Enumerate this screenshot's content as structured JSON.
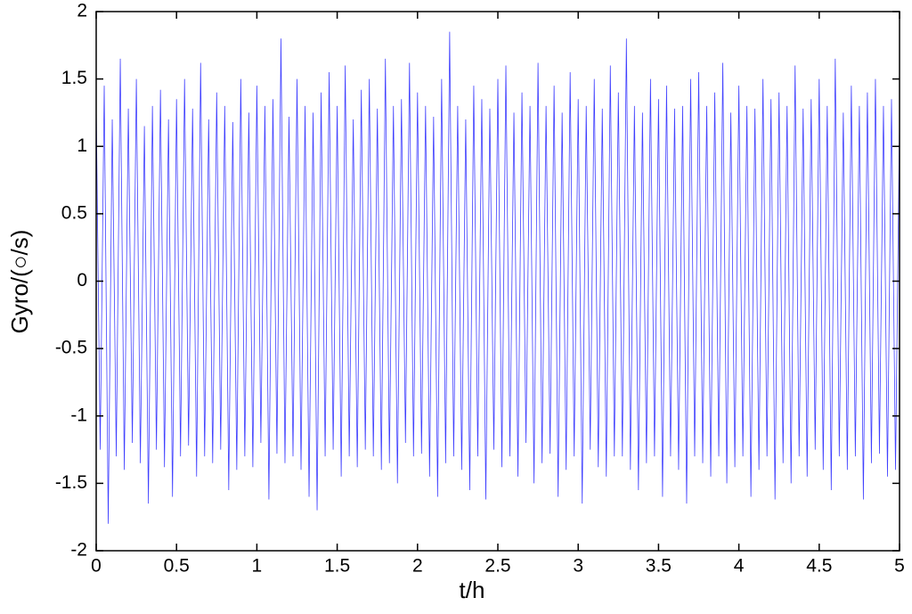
{
  "chart_data": {
    "type": "line",
    "xlabel": "t/h",
    "ylabel": "Gyro/(○/s)",
    "x": [
      0,
      0.025,
      0.05,
      0.075,
      0.1,
      0.125,
      0.15,
      0.175,
      0.2,
      0.225,
      0.25,
      0.275,
      0.3,
      0.325,
      0.35,
      0.375,
      0.4,
      0.425,
      0.45,
      0.475,
      0.5,
      0.525,
      0.55,
      0.575,
      0.6,
      0.625,
      0.65,
      0.675,
      0.7,
      0.725,
      0.75,
      0.775,
      0.8,
      0.825,
      0.85,
      0.875,
      0.9,
      0.925,
      0.95,
      0.975,
      1,
      1.025,
      1.05,
      1.075,
      1.1,
      1.125,
      1.15,
      1.175,
      1.2,
      1.225,
      1.25,
      1.275,
      1.3,
      1.325,
      1.35,
      1.375,
      1.4,
      1.425,
      1.45,
      1.475,
      1.5,
      1.525,
      1.55,
      1.575,
      1.6,
      1.625,
      1.65,
      1.675,
      1.7,
      1.725,
      1.75,
      1.775,
      1.8,
      1.825,
      1.85,
      1.875,
      1.9,
      1.925,
      1.95,
      1.975,
      2,
      2.025,
      2.05,
      2.075,
      2.1,
      2.125,
      2.15,
      2.175,
      2.2,
      2.225,
      2.25,
      2.275,
      2.3,
      2.325,
      2.35,
      2.375,
      2.4,
      2.425,
      2.45,
      2.475,
      2.5,
      2.525,
      2.55,
      2.575,
      2.6,
      2.625,
      2.65,
      2.675,
      2.7,
      2.725,
      2.75,
      2.775,
      2.8,
      2.825,
      2.85,
      2.875,
      2.9,
      2.925,
      2.95,
      2.975,
      3,
      3.025,
      3.05,
      3.075,
      3.1,
      3.125,
      3.15,
      3.175,
      3.2,
      3.225,
      3.25,
      3.275,
      3.3,
      3.325,
      3.35,
      3.375,
      3.4,
      3.425,
      3.45,
      3.475,
      3.5,
      3.525,
      3.55,
      3.575,
      3.6,
      3.625,
      3.65,
      3.675,
      3.7,
      3.725,
      3.75,
      3.775,
      3.8,
      3.825,
      3.85,
      3.875,
      3.9,
      3.925,
      3.95,
      3.975,
      4,
      4.025,
      4.05,
      4.075,
      4.1,
      4.125,
      4.15,
      4.175,
      4.2,
      4.225,
      4.25,
      4.275,
      4.3,
      4.325,
      4.35,
      4.375,
      4.4,
      4.425,
      4.45,
      4.475,
      4.5,
      4.525,
      4.55,
      4.575,
      4.6,
      4.625,
      4.65,
      4.675,
      4.7,
      4.725,
      4.75,
      4.775,
      4.8,
      4.825,
      4.85,
      4.875,
      4.9,
      4.925,
      4.95,
      4.975,
      5
    ],
    "series": [
      {
        "color": "#0000ff",
        "values": [
          1.3,
          -1.25,
          1.45,
          -1.8,
          1.2,
          -1.3,
          1.65,
          -1.4,
          1.28,
          -1.2,
          1.5,
          -1.35,
          1.15,
          -1.65,
          1.3,
          -1.25,
          1.42,
          -1.38,
          1.2,
          -1.6,
          1.35,
          -1.3,
          1.5,
          -1.22,
          1.28,
          -1.45,
          1.62,
          -1.3,
          1.2,
          -1.35,
          1.4,
          -1.25,
          1.3,
          -1.55,
          1.18,
          -1.4,
          1.5,
          -1.3,
          1.25,
          -1.38,
          1.45,
          -1.2,
          1.3,
          -1.62,
          1.35,
          -1.28,
          1.8,
          -1.35,
          1.22,
          -1.3,
          1.5,
          -1.4,
          1.3,
          -1.6,
          1.25,
          -1.7,
          1.4,
          -1.3,
          1.55,
          -1.25,
          1.3,
          -1.45,
          1.6,
          -1.3,
          1.2,
          -1.38,
          1.42,
          -1.25,
          1.5,
          -1.3,
          1.28,
          -1.4,
          1.65,
          -1.35,
          1.3,
          -1.5,
          1.35,
          -1.2,
          1.62,
          -1.3,
          1.4,
          -1.28,
          1.3,
          -1.45,
          1.22,
          -1.6,
          1.5,
          -1.35,
          1.85,
          -1.3,
          1.3,
          -1.4,
          1.2,
          -1.55,
          1.45,
          -1.3,
          1.35,
          -1.62,
          1.28,
          -1.25,
          1.5,
          -1.38,
          1.6,
          -1.3,
          1.25,
          -1.45,
          1.4,
          -1.2,
          1.3,
          -1.5,
          1.62,
          -1.35,
          1.3,
          -1.28,
          1.45,
          -1.6,
          1.25,
          -1.4,
          1.55,
          -1.3,
          1.35,
          -1.65,
          1.3,
          -1.25,
          1.5,
          -1.38,
          1.28,
          -1.45,
          1.6,
          -1.3,
          1.4,
          -1.3,
          1.8,
          -1.4,
          1.3,
          -1.55,
          1.25,
          -1.35,
          1.5,
          -1.3,
          1.35,
          -1.6,
          1.45,
          -1.3,
          1.28,
          -1.4,
          1.3,
          -1.65,
          1.5,
          -1.3,
          1.55,
          -1.35,
          1.3,
          -1.45,
          1.4,
          -1.3,
          1.62,
          -1.5,
          1.25,
          -1.38,
          1.45,
          -1.3,
          1.3,
          -1.6,
          1.28,
          -1.4,
          1.5,
          -1.3,
          1.35,
          -1.62,
          1.4,
          -1.35,
          1.3,
          -1.5,
          1.6,
          -1.3,
          1.28,
          -1.45,
          1.35,
          -1.25,
          1.5,
          -1.4,
          1.3,
          -1.55,
          1.65,
          -1.3,
          1.25,
          -1.4,
          1.45,
          -1.3,
          1.3,
          -1.62,
          1.4,
          -1.35,
          1.5,
          -1.28,
          1.3,
          -1.45,
          1.35,
          -1.4,
          1.2
        ]
      }
    ],
    "xlim": [
      0,
      5
    ],
    "xticks": [
      0,
      0.5,
      1,
      1.5,
      2,
      2.5,
      3,
      3.5,
      4,
      4.5,
      5
    ],
    "ylim": [
      -2,
      2
    ],
    "yticks": [
      -2,
      -1.5,
      -1,
      -0.5,
      0,
      0.5,
      1,
      1.5,
      2
    ],
    "grid": false
  }
}
